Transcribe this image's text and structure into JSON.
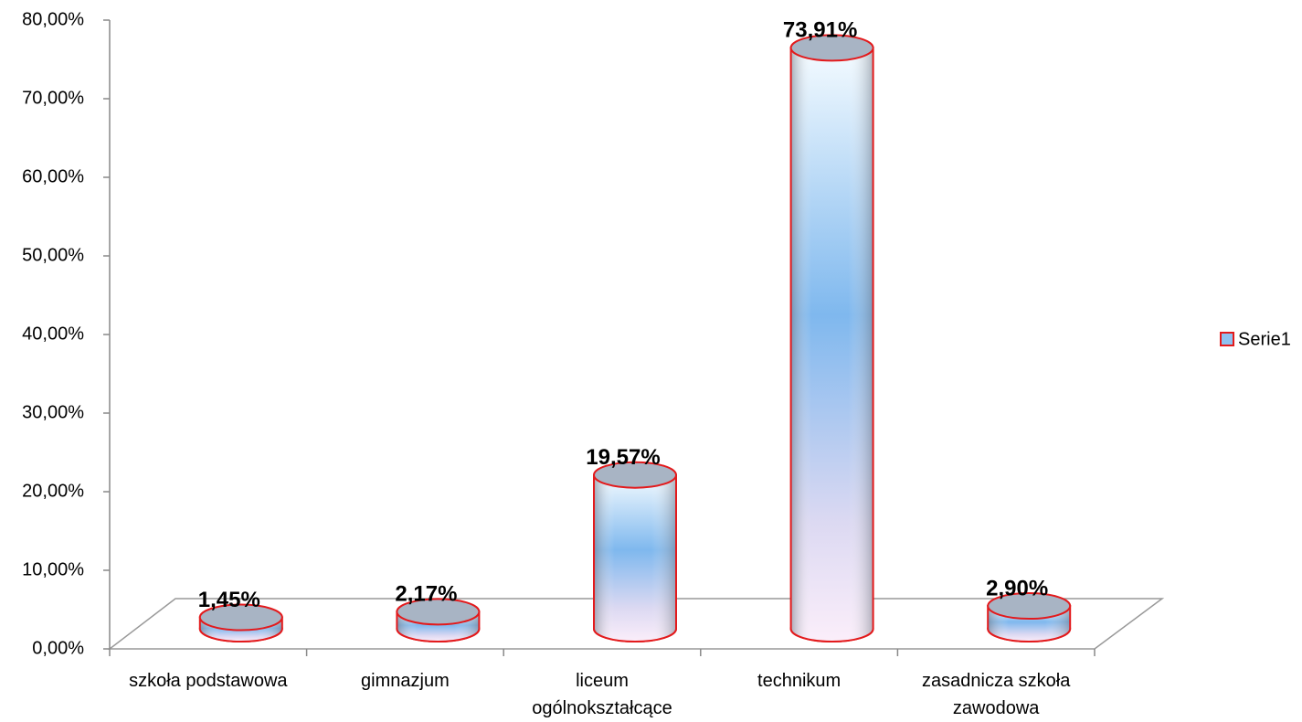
{
  "chart_data": {
    "type": "cylinder",
    "categories": [
      "szkoła podstawowa",
      "gimnazjum",
      "liceum ogólnokształcące",
      "technikum",
      "zasadnicza szkoła zawodowa"
    ],
    "series": [
      {
        "name": "Serie1",
        "color": "#8fc1f0",
        "edge_color": "#e31a1c",
        "values": [
          1.45,
          2.17,
          19.57,
          73.91,
          2.9
        ],
        "value_labels": [
          "1,45%",
          "2,17%",
          "19,57%",
          "73,91%",
          "2,90%"
        ]
      }
    ],
    "ylim": [
      0,
      80
    ],
    "yticks": [
      {
        "value": 0,
        "label": "0,00%"
      },
      {
        "value": 10,
        "label": "10,00%"
      },
      {
        "value": 20,
        "label": "20,00%"
      },
      {
        "value": 30,
        "label": "30,00%"
      },
      {
        "value": 40,
        "label": "40,00%"
      },
      {
        "value": 50,
        "label": "50,00%"
      },
      {
        "value": 60,
        "label": "60,00%"
      },
      {
        "value": 70,
        "label": "70,00%"
      },
      {
        "value": 80,
        "label": "80,00%"
      }
    ],
    "legend": "right"
  }
}
